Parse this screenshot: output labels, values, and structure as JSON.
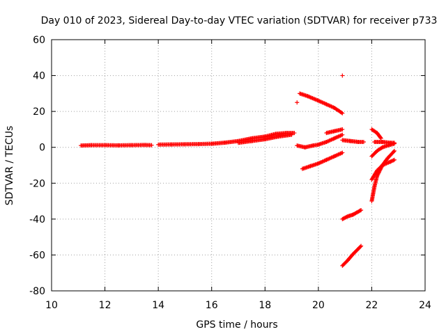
{
  "chart_data": {
    "type": "scatter",
    "title": "Day 010 of 2023, Sidereal Day-to-day VTEC variation (SDTVAR) for receiver p733",
    "xlabel": "GPS time / hours",
    "ylabel": "SDTVAR / TECUs",
    "xlim": [
      10,
      24
    ],
    "ylim": [
      -80,
      60
    ],
    "xticks": [
      10,
      12,
      14,
      16,
      18,
      20,
      22,
      24
    ],
    "yticks": [
      -80,
      -60,
      -40,
      -20,
      0,
      20,
      40,
      60
    ],
    "grid": true,
    "marker": "+",
    "color": "#ff0000",
    "series": [
      {
        "segments": [
          [
            [
              11.1,
              1.0
            ],
            [
              11.5,
              1.2
            ],
            [
              12.0,
              1.2
            ],
            [
              12.5,
              1.1
            ],
            [
              13.0,
              1.2
            ],
            [
              13.5,
              1.3
            ],
            [
              13.75,
              1.2
            ]
          ],
          [
            [
              14.0,
              1.5
            ],
            [
              14.5,
              1.6
            ],
            [
              15.0,
              1.7
            ],
            [
              15.5,
              1.8
            ],
            [
              16.0,
              2.0
            ],
            [
              16.5,
              2.6
            ],
            [
              17.0,
              3.5
            ],
            [
              17.5,
              5.0
            ],
            [
              18.0,
              6.0
            ],
            [
              18.4,
              7.5
            ],
            [
              18.8,
              8.0
            ],
            [
              19.1,
              8.0
            ]
          ],
          [
            [
              17.0,
              2.5
            ],
            [
              17.5,
              3.5
            ],
            [
              18.0,
              4.5
            ],
            [
              18.5,
              6.0
            ],
            [
              19.0,
              7.0
            ]
          ],
          [
            [
              19.2,
              25.0
            ]
          ],
          [
            [
              19.3,
              30.0
            ],
            [
              19.6,
              28.5
            ],
            [
              20.0,
              26.0
            ],
            [
              20.3,
              24.0
            ],
            [
              20.6,
              22.0
            ],
            [
              20.9,
              19.0
            ]
          ],
          [
            [
              19.2,
              1.0
            ],
            [
              19.5,
              0.0
            ],
            [
              19.8,
              1.0
            ],
            [
              20.0,
              1.5
            ],
            [
              20.3,
              3.0
            ],
            [
              20.6,
              5.0
            ],
            [
              20.9,
              7.0
            ]
          ],
          [
            [
              20.3,
              8.0
            ],
            [
              20.6,
              9.0
            ],
            [
              20.9,
              10.0
            ]
          ],
          [
            [
              19.4,
              -12.0
            ],
            [
              19.7,
              -10.5
            ],
            [
              20.0,
              -9.0
            ],
            [
              20.3,
              -7.0
            ],
            [
              20.6,
              -5.0
            ],
            [
              20.9,
              -3.0
            ]
          ],
          [
            [
              20.9,
              4.0
            ],
            [
              21.2,
              3.5
            ],
            [
              21.5,
              3.0
            ],
            [
              21.7,
              3.0
            ]
          ],
          [
            [
              20.9,
              40.0
            ]
          ],
          [
            [
              20.9,
              -40.0
            ],
            [
              21.1,
              -38.5
            ],
            [
              21.3,
              -37.5
            ],
            [
              21.6,
              -35.0
            ]
          ],
          [
            [
              20.9,
              -66.0
            ],
            [
              21.1,
              -63.0
            ],
            [
              21.3,
              -59.5
            ],
            [
              21.6,
              -55.0
            ]
          ],
          [
            [
              22.0,
              10.0
            ],
            [
              22.2,
              8.0
            ],
            [
              22.35,
              5.0
            ]
          ],
          [
            [
              22.1,
              3.0
            ],
            [
              22.4,
              3.0
            ],
            [
              22.7,
              2.5
            ],
            [
              22.85,
              2.5
            ]
          ],
          [
            [
              22.0,
              -30.0
            ],
            [
              22.1,
              -22.0
            ],
            [
              22.2,
              -16.0
            ],
            [
              22.4,
              -10.0
            ],
            [
              22.6,
              -6.0
            ],
            [
              22.85,
              -2.0
            ]
          ],
          [
            [
              22.0,
              -18.0
            ],
            [
              22.2,
              -13.0
            ],
            [
              22.4,
              -10.0
            ],
            [
              22.7,
              -8.0
            ],
            [
              22.85,
              -7.0
            ]
          ],
          [
            [
              22.0,
              -5.0
            ],
            [
              22.2,
              -2.0
            ],
            [
              22.4,
              0.0
            ],
            [
              22.7,
              1.5
            ],
            [
              22.85,
              2.0
            ]
          ]
        ]
      }
    ]
  }
}
